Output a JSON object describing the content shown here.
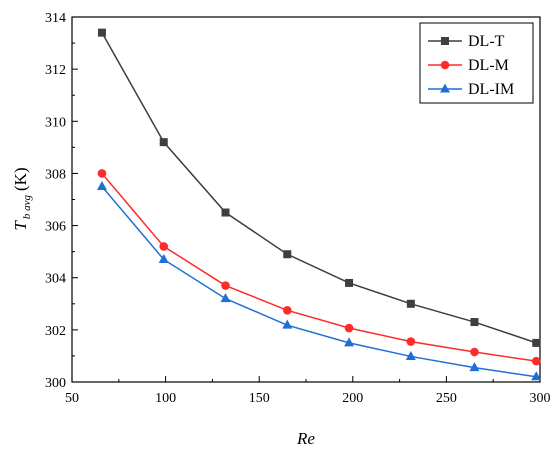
{
  "chart_data": {
    "type": "line",
    "xlabel": "Re",
    "ylabel_main": "T",
    "ylabel_sub": "b avg",
    "ylabel_unit": "(K)",
    "xlim": [
      50,
      300
    ],
    "ylim": [
      300,
      314
    ],
    "xticks": [
      50,
      100,
      150,
      200,
      250,
      300
    ],
    "yticks": [
      300,
      302,
      304,
      306,
      308,
      310,
      312,
      314
    ],
    "grid": false,
    "legend_position": "top-right",
    "x": [
      66,
      99,
      132,
      165,
      198,
      231,
      265,
      298
    ],
    "series": [
      {
        "name": "DL-T",
        "color": "#3f3f3f",
        "marker": "square",
        "values": [
          313.4,
          309.2,
          306.5,
          304.9,
          303.8,
          303.0,
          302.3,
          301.5
        ]
      },
      {
        "name": "DL-M",
        "color": "#ff2a2a",
        "marker": "circle",
        "values": [
          308.0,
          305.2,
          303.7,
          302.75,
          302.07,
          301.55,
          301.15,
          300.8
        ]
      },
      {
        "name": "DL-IM",
        "color": "#1f6fd6",
        "marker": "triangle",
        "values": [
          307.5,
          304.7,
          303.2,
          302.18,
          301.5,
          300.98,
          300.55,
          300.2
        ]
      }
    ]
  }
}
